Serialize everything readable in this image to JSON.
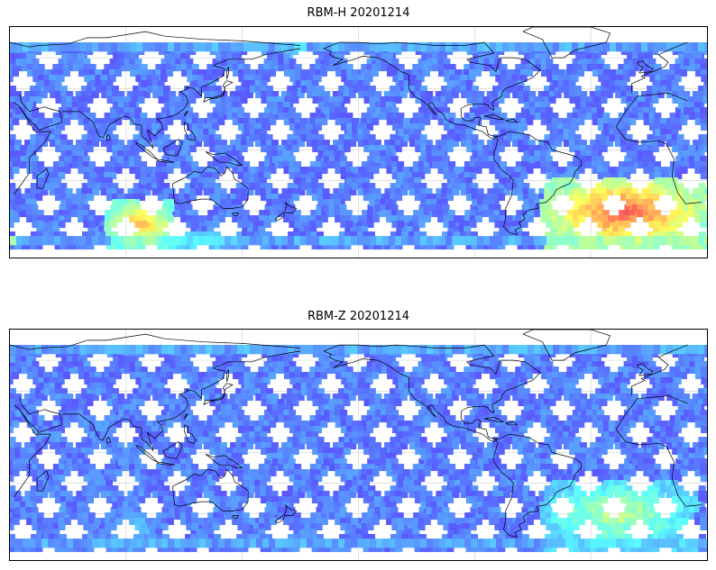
{
  "panels": [
    {
      "title": "RBM-H 20201214",
      "hot_regions": [
        {
          "lon_from": -55,
          "lon_to": 30,
          "lat_from": -62,
          "lat_to": -15,
          "level": 0.88
        },
        {
          "lon_from": 80,
          "lon_to": 115,
          "lat_from": -62,
          "lat_to": -30,
          "level": 0.75
        },
        {
          "lon_from": 100,
          "lon_to": 150,
          "lat_from": -62,
          "lat_to": -52,
          "level": 0.45
        },
        {
          "lon_from": 170,
          "lon_to": 215,
          "lat_from": 60,
          "lat_to": 70,
          "level": 0.45
        }
      ]
    },
    {
      "title": "RBM-Z 20201214",
      "hot_regions": [
        {
          "lon_from": -55,
          "lon_to": 25,
          "lat_from": -62,
          "lat_to": -15,
          "level": 0.55
        },
        {
          "lon_from": 80,
          "lon_to": 105,
          "lat_from": -62,
          "lat_to": -35,
          "level": 0.35
        }
      ]
    }
  ],
  "map": {
    "lon_range": [
      30,
      390
    ],
    "lat_range": [
      -70,
      80
    ],
    "swath_lat_range": [
      -62,
      70
    ],
    "colormap": "jet",
    "colors": {
      "base_low": "#6060ee",
      "base_high": "#5aa7f5",
      "coast": "#000000",
      "grid": "#cccccc"
    }
  }
}
